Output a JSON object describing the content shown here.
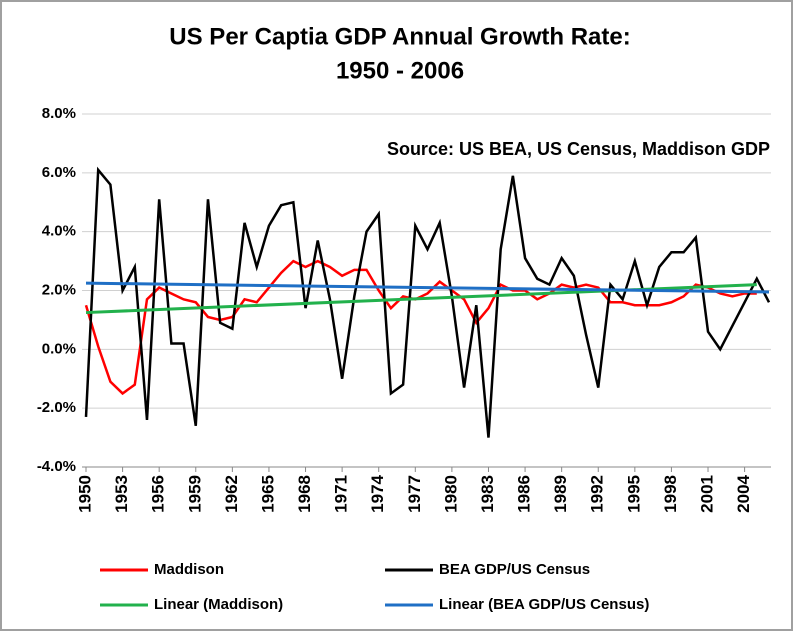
{
  "chart_data": {
    "type": "line",
    "title": [
      "US Per Captia GDP Annual Growth Rate:",
      "1950 - 2006"
    ],
    "annotation": "Source: US BEA, US Census, Maddison GDP",
    "x": [
      1950,
      1951,
      1952,
      1953,
      1954,
      1955,
      1956,
      1957,
      1958,
      1959,
      1960,
      1961,
      1962,
      1963,
      1964,
      1965,
      1966,
      1967,
      1968,
      1969,
      1970,
      1971,
      1972,
      1973,
      1974,
      1975,
      1976,
      1977,
      1978,
      1979,
      1980,
      1981,
      1982,
      1983,
      1984,
      1985,
      1986,
      1987,
      1988,
      1989,
      1990,
      1991,
      1992,
      1993,
      1994,
      1995,
      1996,
      1997,
      1998,
      1999,
      2000,
      2001,
      2002,
      2003,
      2004,
      2005,
      2006
    ],
    "series": [
      {
        "name": "Maddison",
        "color": "#ff0000",
        "values": [
          1.5,
          0.1,
          -1.1,
          -1.5,
          -1.2,
          1.7,
          2.1,
          1.9,
          1.7,
          1.6,
          1.1,
          1.0,
          1.1,
          1.7,
          1.6,
          2.1,
          2.6,
          3.0,
          2.8,
          3.0,
          2.8,
          2.5,
          2.7,
          2.7,
          2.0,
          1.4,
          1.8,
          1.7,
          1.9,
          2.3,
          2.0,
          1.7,
          0.9,
          1.4,
          2.2,
          2.0,
          2.0,
          1.7,
          1.9,
          2.2,
          2.1,
          2.2,
          2.1,
          1.6,
          1.6,
          1.5,
          1.5,
          1.5,
          1.6,
          1.8,
          2.2,
          2.1,
          1.9,
          1.8,
          1.9,
          1.9,
          null
        ]
      },
      {
        "name": "BEA GDP/US Census",
        "color": "#000000",
        "values": [
          -2.3,
          6.1,
          5.6,
          2.0,
          2.8,
          -2.4,
          5.1,
          0.2,
          0.2,
          -2.6,
          5.1,
          0.9,
          0.7,
          4.3,
          2.8,
          4.2,
          4.9,
          5.0,
          1.4,
          3.7,
          1.7,
          -1.0,
          1.8,
          4.0,
          4.6,
          -1.5,
          -1.2,
          4.2,
          3.4,
          4.3,
          1.8,
          -1.3,
          1.5,
          -3.0,
          3.4,
          5.9,
          3.1,
          2.4,
          2.2,
          3.1,
          2.5,
          0.5,
          -1.3,
          2.2,
          1.7,
          3.0,
          1.5,
          2.8,
          3.3,
          3.3,
          3.8,
          0.6,
          0.0,
          0.8,
          1.6,
          2.4,
          1.6
        ]
      },
      {
        "name": "Linear (Maddison)",
        "color": "#22b14c",
        "x": [
          1950,
          2005
        ],
        "values": [
          1.25,
          2.2
        ]
      },
      {
        "name": "Linear (BEA GDP/US Census)",
        "color": "#1f6fc5",
        "x": [
          1950,
          2006
        ],
        "values": [
          2.25,
          1.95
        ]
      }
    ],
    "xlim": [
      1950,
      2006
    ],
    "xticks": [
      1950,
      1953,
      1956,
      1959,
      1962,
      1965,
      1968,
      1971,
      1974,
      1977,
      1980,
      1983,
      1986,
      1989,
      1992,
      1995,
      1998,
      2001,
      2004
    ],
    "ylim": [
      -4,
      8
    ],
    "yticks": [
      {
        "value": -4,
        "label": "-4.0%"
      },
      {
        "value": -2,
        "label": "-2.0%"
      },
      {
        "value": 0,
        "label": "0.0%"
      },
      {
        "value": 2,
        "label": "2.0%"
      },
      {
        "value": 4,
        "label": "4.0%"
      },
      {
        "value": 6,
        "label": "6.0%"
      },
      {
        "value": 8,
        "label": "8.0%"
      }
    ],
    "grid": true
  }
}
